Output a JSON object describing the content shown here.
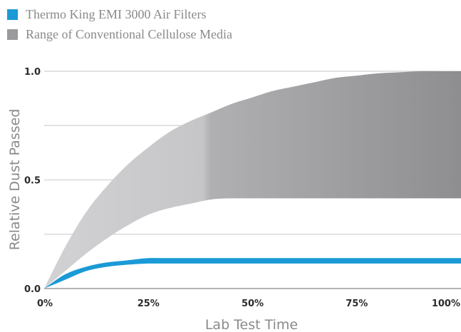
{
  "legend": [
    {
      "label": "Thermo King EMI 3000 Air Filters",
      "color": "#1a9ad6"
    },
    {
      "label": "Range of Conventional Cellulose Media",
      "color": "#9a9a9c"
    }
  ],
  "chart_data": {
    "type": "area",
    "title": "",
    "xlabel": "Lab Test Time",
    "ylabel": "Relative Dust Passed",
    "x_ticks": [
      "0%",
      "25%",
      "50%",
      "75%",
      "100%"
    ],
    "y_ticks": [
      "0.0",
      "0.5",
      "1.0"
    ],
    "xlim": [
      0,
      100
    ],
    "ylim": [
      0,
      1
    ],
    "grid": true,
    "legend_position": "top-left",
    "x": [
      0,
      5,
      10,
      15,
      20,
      25,
      30,
      35,
      40,
      45,
      50,
      55,
      60,
      65,
      70,
      75,
      80,
      85,
      90,
      95,
      100
    ],
    "series": [
      {
        "name": "Thermo King EMI 3000 Air Filters",
        "kind": "band",
        "color": "#1a9ad6",
        "lower": [
          0,
          0.04,
          0.08,
          0.1,
          0.11,
          0.115,
          0.115,
          0.115,
          0.115,
          0.115,
          0.115,
          0.115,
          0.115,
          0.115,
          0.115,
          0.115,
          0.115,
          0.115,
          0.115,
          0.115,
          0.115
        ],
        "upper": [
          0,
          0.065,
          0.1,
          0.12,
          0.13,
          0.14,
          0.14,
          0.14,
          0.14,
          0.14,
          0.14,
          0.14,
          0.14,
          0.14,
          0.14,
          0.14,
          0.14,
          0.14,
          0.14,
          0.14,
          0.14
        ]
      },
      {
        "name": "Range of Conventional Cellulose Media",
        "kind": "band",
        "color": "#9a9a9c",
        "lower": [
          0,
          0.08,
          0.16,
          0.23,
          0.29,
          0.34,
          0.37,
          0.39,
          0.41,
          0.415,
          0.415,
          0.415,
          0.415,
          0.415,
          0.415,
          0.415,
          0.415,
          0.415,
          0.415,
          0.415,
          0.415
        ],
        "upper": [
          0,
          0.19,
          0.35,
          0.47,
          0.57,
          0.65,
          0.72,
          0.77,
          0.81,
          0.85,
          0.88,
          0.91,
          0.93,
          0.95,
          0.97,
          0.98,
          0.99,
          0.995,
          1.0,
          1.0,
          1.0
        ]
      }
    ]
  }
}
